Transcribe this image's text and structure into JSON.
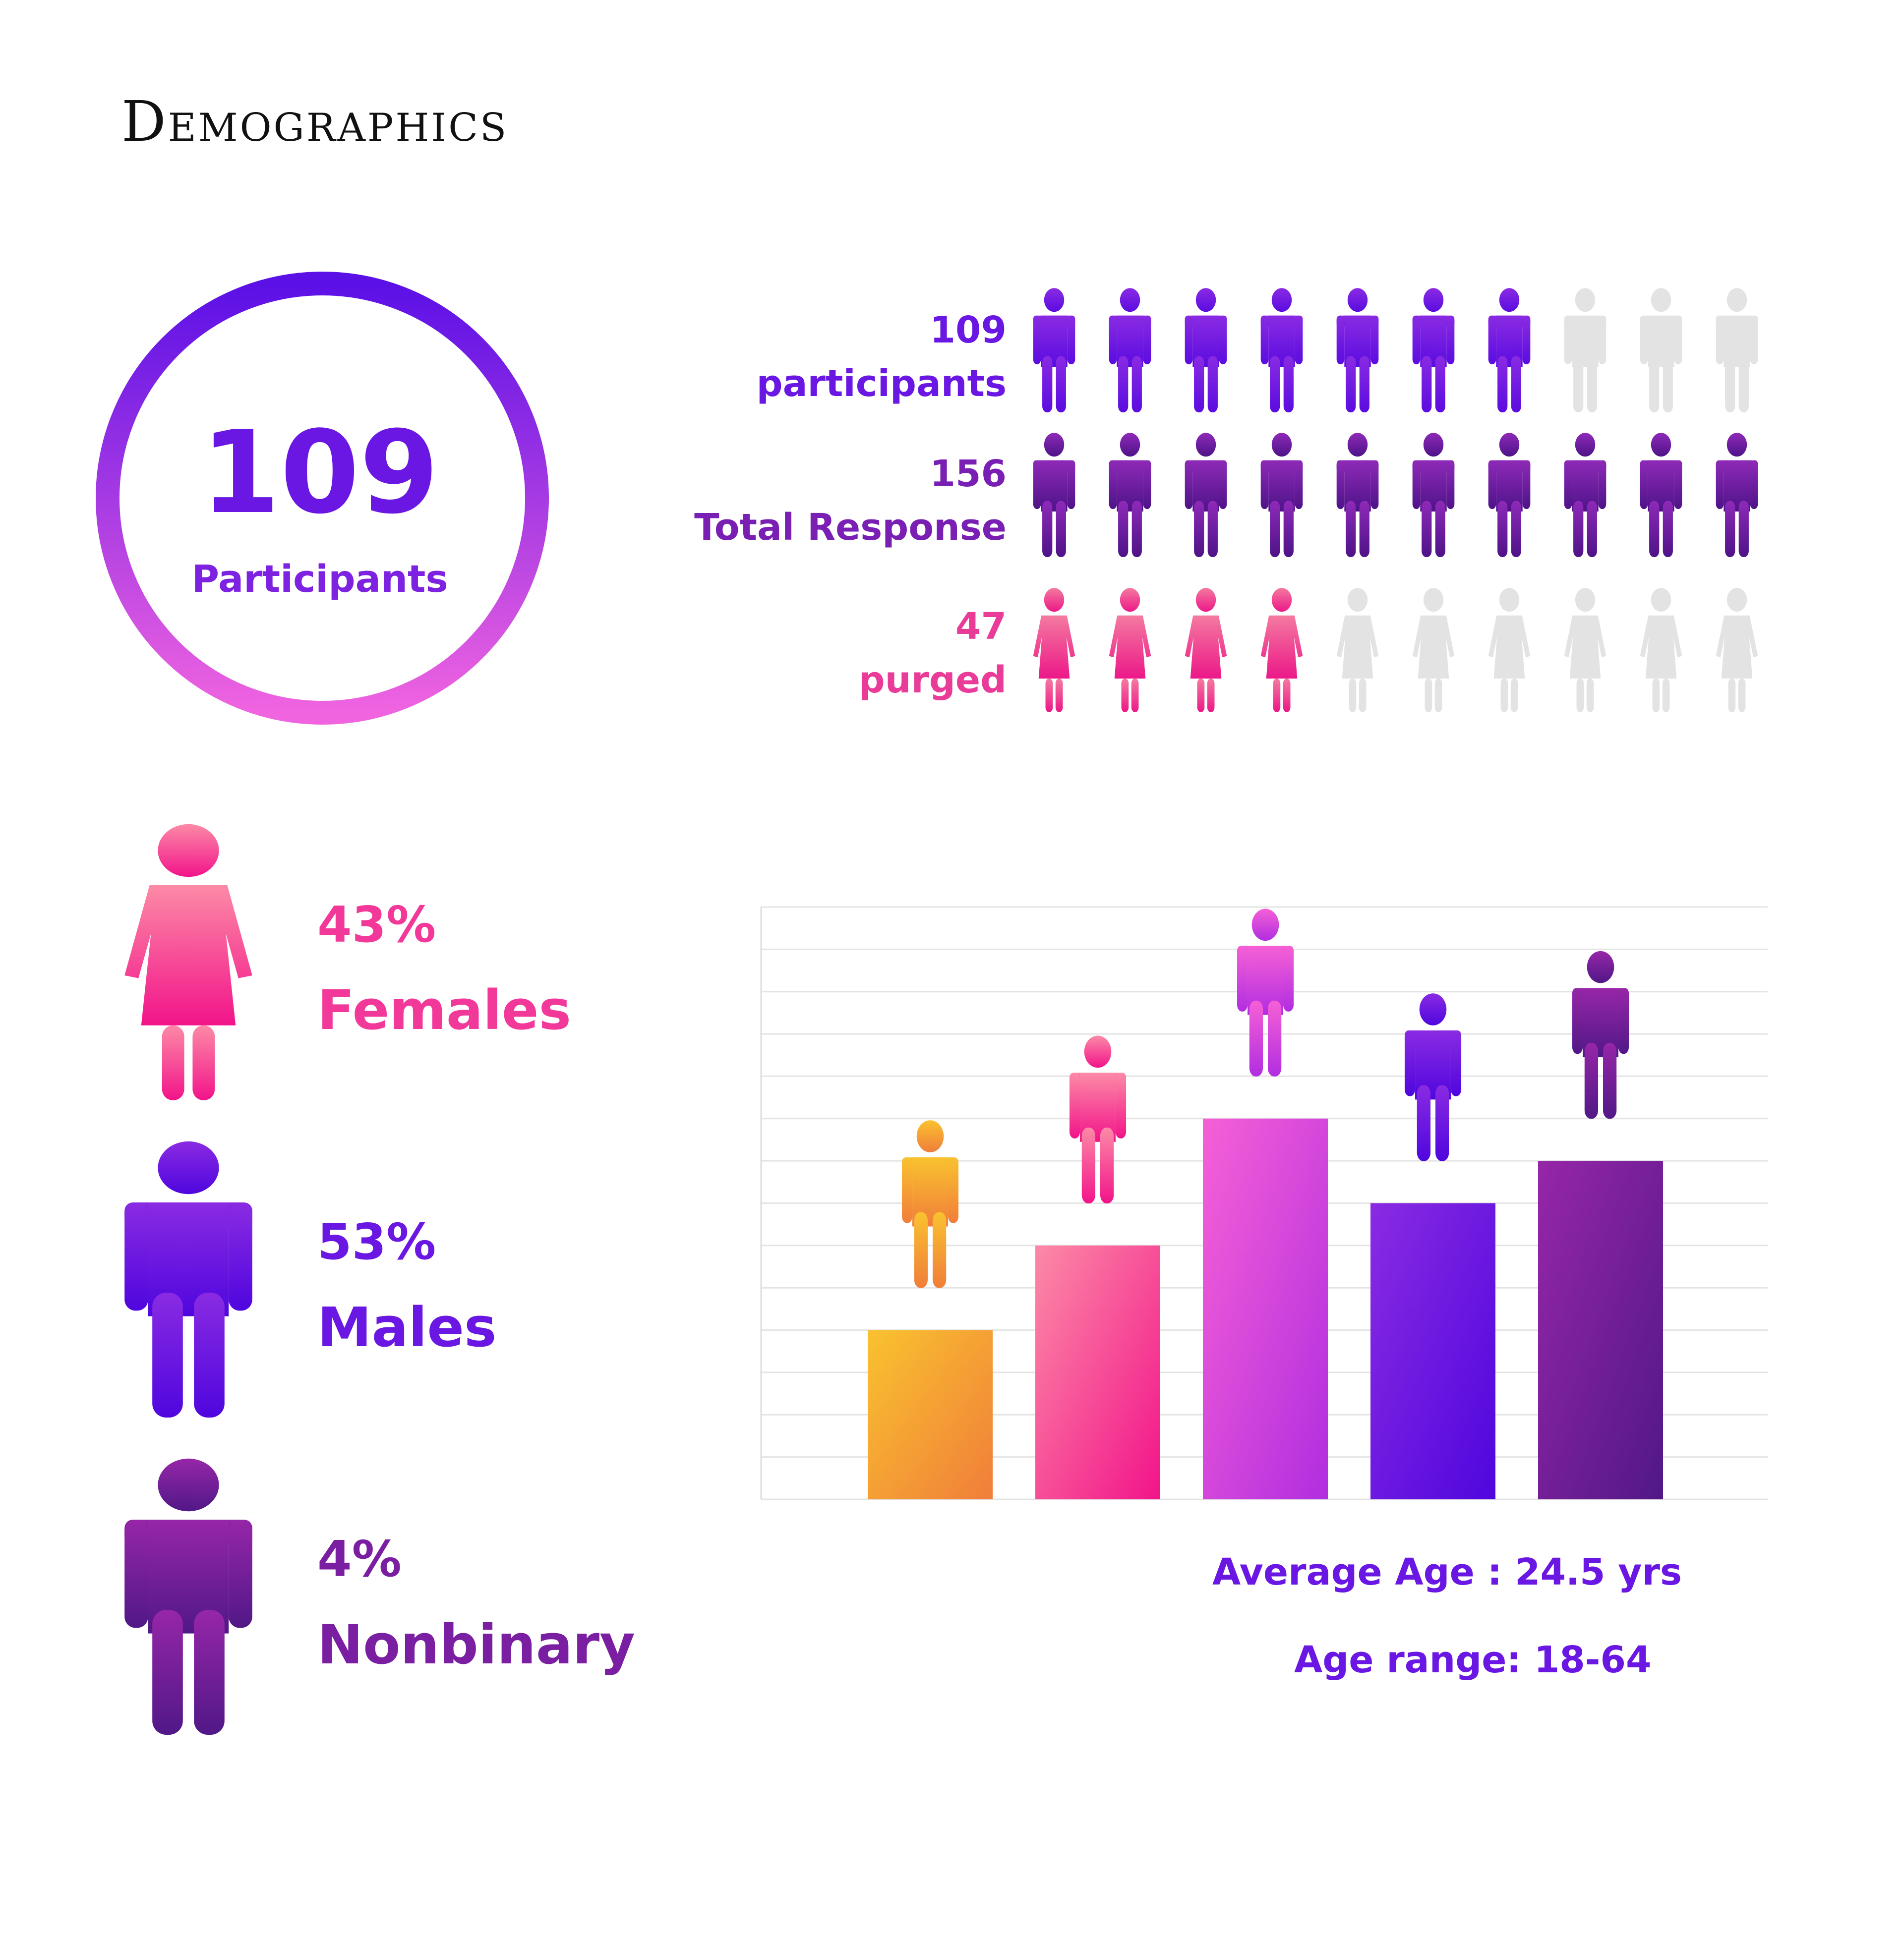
{
  "title": "Demographics",
  "summary": {
    "number": "109",
    "label": "Participants"
  },
  "stats": [
    {
      "value": "109",
      "label": "participants",
      "color": "#6a17e3",
      "icon": "male-person-icon",
      "filled": 7,
      "total": 10,
      "fill_start": "#8a2be2",
      "fill_end": "#5b0ce0"
    },
    {
      "value": "156",
      "label": "Total Response",
      "color": "#7a1fb4",
      "icon": "male-person-icon",
      "filled": 10,
      "total": 10,
      "fill_start": "#8e2ab8",
      "fill_end": "#4e1388"
    },
    {
      "value": "47",
      "label": "purged",
      "color": "#e83c98",
      "icon": "female-person-icon",
      "filled": 4,
      "total": 10,
      "fill_start": "#f47aa0",
      "fill_end": "#ec1888"
    }
  ],
  "inactive_color": "#e3e3e3",
  "genders": [
    {
      "percent": "43%",
      "label": "Females",
      "color": "#f2399a",
      "icon": "female-person-icon"
    },
    {
      "percent": "53%",
      "label": "Males",
      "color": "#6a17e3",
      "icon": "male-person-icon"
    },
    {
      "percent": "4%",
      "label": "Nonbinary",
      "color": "#7b1fa2",
      "icon": "person-icon"
    }
  ],
  "chart_data": {
    "type": "bar",
    "title": "",
    "xlabel": "",
    "ylabel": "",
    "categories": [
      "",
      "",
      "",
      "",
      ""
    ],
    "values": [
      4,
      6,
      9,
      7,
      8
    ],
    "ylim": [
      0,
      14
    ],
    "grid": true,
    "bar_colors": [
      [
        "#f9c22f",
        "#f07e3a"
      ],
      [
        "#fc8aa6",
        "#f2148a"
      ],
      [
        "#f660d6",
        "#b12ee0"
      ],
      [
        "#8a2be2",
        "#4f06de"
      ],
      [
        "#9626a8",
        "#511887"
      ]
    ]
  },
  "age": {
    "average": "Average Age : 24.5 yrs",
    "range": "Age range:  18-64"
  }
}
